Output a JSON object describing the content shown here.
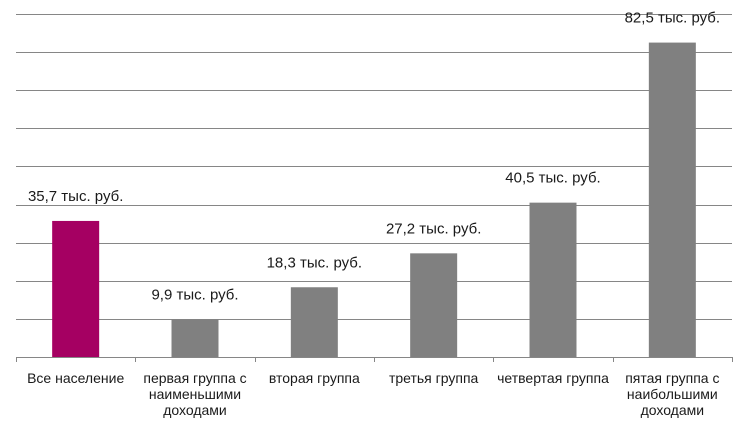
{
  "chart_data": {
    "type": "bar",
    "categories": [
      "Все население",
      "первая группа с наименьшими доходами",
      "вторая группа",
      "третья группа",
      "четвертая группа",
      "пятая группа с наибольшими доходами"
    ],
    "values": [
      35.7,
      9.9,
      18.3,
      27.2,
      40.5,
      82.5
    ],
    "data_labels": [
      "35,7 тыс. руб.",
      "9,9 тыс. руб.",
      "18,3 тыс. руб.",
      "27,2 тыс. руб.",
      "40,5 тыс. руб.",
      "82,5 тыс. руб."
    ],
    "ylim": [
      0,
      90
    ],
    "grid": true,
    "title": "",
    "xlabel": "",
    "ylabel": "",
    "colors": {
      "highlight": "#A50062",
      "bar": "#808080",
      "grid": "#868686"
    }
  }
}
